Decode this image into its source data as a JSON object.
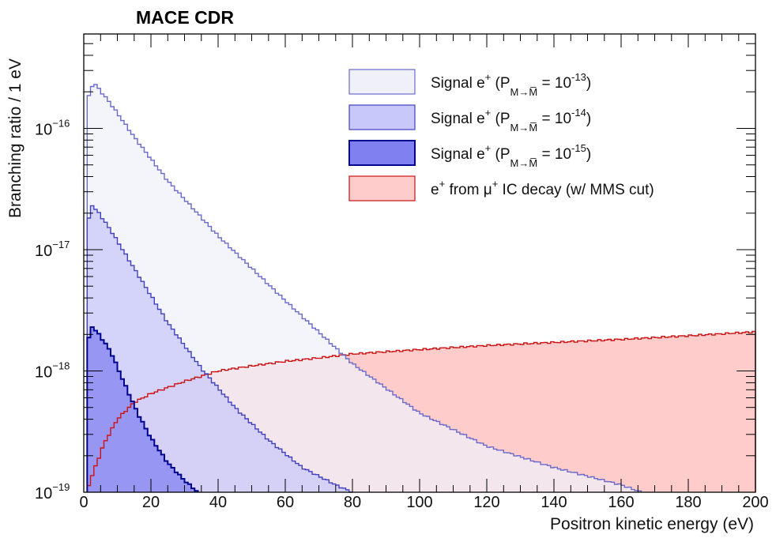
{
  "chart_data": {
    "type": "histogram",
    "title": "MACE CDR",
    "xlabel": "Positron kinetic energy (eV)",
    "ylabel": "Branching ratio / 1 eV",
    "xlim": [
      0,
      200
    ],
    "ylim": [
      1e-19,
      6e-16
    ],
    "yscale": "log",
    "bin_width_eV": 1,
    "x_ticks": [
      0,
      20,
      40,
      60,
      80,
      100,
      120,
      140,
      160,
      180,
      200
    ],
    "y_ticks": [
      {
        "value": 1e-19,
        "base": "10",
        "exponent": "−19"
      },
      {
        "value": 1e-18,
        "base": "10",
        "exponent": "−18"
      },
      {
        "value": 1e-17,
        "base": "10",
        "exponent": "−17"
      },
      {
        "value": 1e-16,
        "base": "10",
        "exponent": "−16"
      }
    ],
    "series": [
      {
        "name": "signal_1e-13",
        "label_prefix": "Signal e",
        "label_sup": "+",
        "label_paren": " (P",
        "label_sub": "M→M̅",
        "label_eq": " = 10",
        "label_exp": "-13",
        "label_close": ")",
        "stroke": "#6a6acb",
        "fill": "#f0f0fa",
        "peak_x": 3,
        "peak_value": 2.3e-16,
        "points": [
          [
            1,
            1.5e-16
          ],
          [
            2,
            2.25e-16
          ],
          [
            4,
            2.2e-16
          ],
          [
            8,
            1.6e-16
          ],
          [
            15,
            8.5e-17
          ],
          [
            25,
            3.7e-17
          ],
          [
            40,
            1.3e-17
          ],
          [
            60,
            3.8e-18
          ],
          [
            80,
            1.15e-18
          ],
          [
            100,
            4.5e-19
          ],
          [
            120,
            2.4e-19
          ],
          [
            140,
            1.6e-19
          ],
          [
            160,
            1.15e-19
          ],
          [
            166,
            1e-19
          ]
        ]
      },
      {
        "name": "signal_1e-14",
        "label_prefix": "Signal e",
        "label_sup": "+",
        "label_paren": " (P",
        "label_sub": "M→M̅",
        "label_eq": " = 10",
        "label_exp": "-14",
        "label_close": ")",
        "stroke": "#4040c0",
        "fill": "#c8c8fa",
        "peak_x": 2,
        "peak_value": 2.3e-17,
        "points": [
          [
            1,
            1.4e-17
          ],
          [
            2,
            2.3e-17
          ],
          [
            4,
            2.1e-17
          ],
          [
            8,
            1.45e-17
          ],
          [
            15,
            7e-18
          ],
          [
            25,
            2.5e-18
          ],
          [
            35,
            1.05e-18
          ],
          [
            45,
            5e-19
          ],
          [
            55,
            2.7e-19
          ],
          [
            65,
            1.6e-19
          ],
          [
            75,
            1.15e-19
          ],
          [
            80,
            1e-19
          ]
        ]
      },
      {
        "name": "signal_1e-15",
        "label_prefix": "Signal e",
        "label_sup": "+",
        "label_paren": " (P",
        "label_sub": "M→M̅",
        "label_eq": " = 10",
        "label_exp": "-15",
        "label_close": ")",
        "stroke": "#000090",
        "fill": "#8080f0",
        "peak_x": 2,
        "peak_value": 2.3e-18,
        "points": [
          [
            1,
            1.5e-18
          ],
          [
            2,
            2.3e-18
          ],
          [
            4,
            2.1e-18
          ],
          [
            8,
            1.45e-18
          ],
          [
            12,
            8e-19
          ],
          [
            16,
            4.5e-19
          ],
          [
            20,
            2.8e-19
          ],
          [
            25,
            1.75e-19
          ],
          [
            30,
            1.25e-19
          ],
          [
            34,
            1e-19
          ]
        ]
      },
      {
        "name": "ic_decay",
        "label_prefix": "e",
        "label_sup": "+",
        "label_paren": " from   μ",
        "label_sub": "",
        "label_eq": "",
        "label_exp": "+",
        "label_close": " IC decay (w/ MMS cut)",
        "stroke": "#cc1111",
        "fill": "#ffcccc",
        "points": [
          [
            1,
            1.05e-19
          ],
          [
            3,
            1.5e-19
          ],
          [
            6,
            2.5e-19
          ],
          [
            10,
            4e-19
          ],
          [
            15,
            5.5e-19
          ],
          [
            20,
            6.5e-19
          ],
          [
            30,
            8.2e-19
          ],
          [
            40,
            1e-18
          ],
          [
            50,
            1.1e-18
          ],
          [
            60,
            1.2e-18
          ],
          [
            70,
            1.28e-18
          ],
          [
            80,
            1.38e-18
          ],
          [
            100,
            1.5e-18
          ],
          [
            120,
            1.62e-18
          ],
          [
            140,
            1.72e-18
          ],
          [
            160,
            1.82e-18
          ],
          [
            180,
            1.95e-18
          ],
          [
            200,
            2.1e-18
          ]
        ]
      }
    ]
  }
}
